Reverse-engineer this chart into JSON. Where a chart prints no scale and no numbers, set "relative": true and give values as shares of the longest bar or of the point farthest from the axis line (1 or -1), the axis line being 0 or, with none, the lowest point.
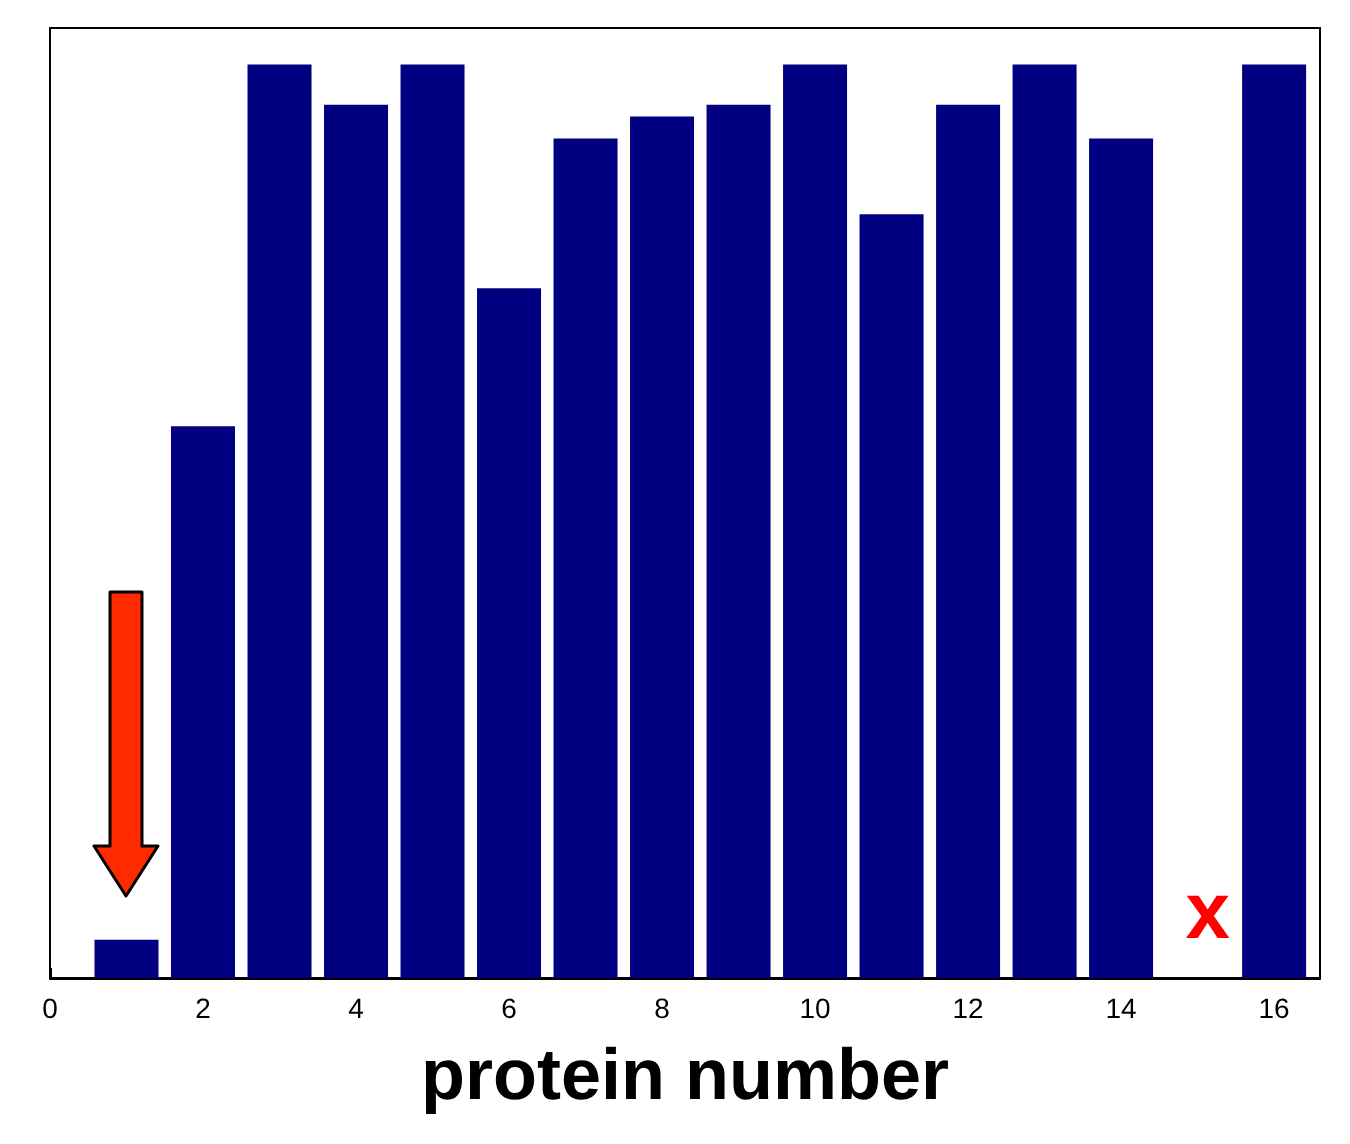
{
  "chart_data": {
    "type": "bar",
    "xlabel": "protein number",
    "relative": true,
    "x": [
      1,
      2,
      3,
      4,
      5,
      6,
      7,
      8,
      9,
      10,
      11,
      12,
      13,
      14,
      15,
      16
    ],
    "values": [
      0.042,
      0.604,
      1,
      0.956,
      1,
      0.755,
      0.919,
      0.943,
      0.956,
      1,
      0.836,
      0.956,
      1,
      0.919,
      null,
      1
    ],
    "color": "#000080",
    "xlim": [
      0,
      16.6
    ],
    "xticks": [
      0,
      2,
      4,
      6,
      8,
      10,
      12,
      14,
      16
    ],
    "annotations": [
      "x"
    ]
  }
}
